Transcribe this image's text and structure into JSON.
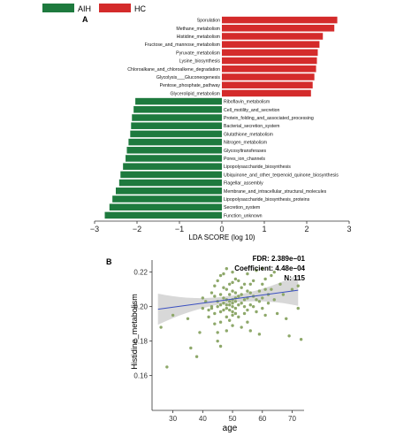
{
  "chart_data": [
    {
      "panel_label": "A",
      "type": "bar",
      "orientation": "horizontal",
      "legend": {
        "position": "top-left",
        "entries": [
          {
            "name": "AIH",
            "color": "#1e7a3e"
          },
          {
            "name": "HC",
            "color": "#d42b2b"
          }
        ]
      },
      "xlabel": "LDA SCORE (log 10)",
      "xlim": [
        -3,
        3
      ],
      "xticks": [
        -3,
        -2,
        -1,
        0,
        1,
        2,
        3
      ],
      "xtick_labels": [
        "−3",
        "−2",
        "−1",
        "0",
        "1",
        "2",
        "3"
      ],
      "categories": [
        "Sporulation",
        "Methane_metabolism",
        "Histidine_metabolism",
        "Fructose_and_mannose_metabolism",
        "Pyruvate_metabolism",
        "Lysine_biosynthesis",
        "Chloroalkane_and_chloroalkene_degradation",
        "Glycolysis___Gluconeogenesis",
        "Pentose_phosphate_pathway",
        "Glycerolipid_metabolism",
        "Riboflavin_metabolism",
        "Cell_motility_and_secretion",
        "Protein_folding_and_associated_processing",
        "Bacterial_secretion_system",
        "Glutathione_metabolism",
        "Nitrogen_metabolism",
        "Glycosyltransferases",
        "Pores_ion_channels",
        "Lipopolysaccharide_biosynthesis",
        "Ubiquinone_and_other_terpenoid_quinone_biosynthesis",
        "Flagellar_assembly",
        "Membrane_and_intracellular_structural_molecules",
        "Lipopolysaccharide_biosynthesis_proteins",
        "Secretion_system",
        "Function_unknown"
      ],
      "values": [
        2.72,
        2.65,
        2.38,
        2.3,
        2.26,
        2.24,
        2.22,
        2.18,
        2.14,
        2.1,
        -2.04,
        -2.08,
        -2.12,
        -2.14,
        -2.16,
        -2.2,
        -2.24,
        -2.27,
        -2.33,
        -2.39,
        -2.42,
        -2.5,
        -2.58,
        -2.65,
        -2.76
      ],
      "groups": [
        "HC",
        "HC",
        "HC",
        "HC",
        "HC",
        "HC",
        "HC",
        "HC",
        "HC",
        "HC",
        "AIH",
        "AIH",
        "AIH",
        "AIH",
        "AIH",
        "AIH",
        "AIH",
        "AIH",
        "AIH",
        "AIH",
        "AIH",
        "AIH",
        "AIH",
        "AIH",
        "AIH"
      ]
    },
    {
      "panel_label": "B",
      "type": "scatter",
      "xlabel": "age",
      "ylabel": "Histidine_metabolism",
      "xlim": [
        23,
        74
      ],
      "ylim": [
        0.147,
        0.227
      ],
      "xticks": [
        30,
        40,
        50,
        60,
        70
      ],
      "yticks": [
        0.16,
        0.18,
        0.2,
        0.22
      ],
      "ytick_labels": [
        "0.16",
        "0.18",
        "0.20",
        "0.22"
      ],
      "annotations": [
        "FDR: 2.389e−01",
        "Coefficient: 4.48e−04",
        "N: 115"
      ],
      "point_color": "#8ea86a",
      "fit": {
        "x": [
          25,
          72
        ],
        "y": [
          0.1985,
          0.2095
        ],
        "color": "#3a4fc0",
        "band_color": "#c8c8c8",
        "band_halfwidth_ends": 0.009,
        "band_halfwidth_mid": 0.002
      },
      "points": [
        [
          26,
          0.188
        ],
        [
          28,
          0.165
        ],
        [
          30,
          0.195
        ],
        [
          35,
          0.193
        ],
        [
          36,
          0.176
        ],
        [
          38,
          0.171
        ],
        [
          39,
          0.185
        ],
        [
          40,
          0.199
        ],
        [
          40,
          0.205
        ],
        [
          41,
          0.203
        ],
        [
          42,
          0.198
        ],
        [
          42,
          0.194
        ],
        [
          43,
          0.208
        ],
        [
          43,
          0.2
        ],
        [
          43,
          0.199
        ],
        [
          44,
          0.212
        ],
        [
          44,
          0.206
        ],
        [
          44,
          0.196
        ],
        [
          44,
          0.19
        ],
        [
          45,
          0.215
        ],
        [
          45,
          0.203
        ],
        [
          45,
          0.2
        ],
        [
          45,
          0.185
        ],
        [
          45,
          0.18
        ],
        [
          46,
          0.218
        ],
        [
          46,
          0.207
        ],
        [
          46,
          0.201
        ],
        [
          46,
          0.197
        ],
        [
          46,
          0.191
        ],
        [
          46,
          0.177
        ],
        [
          47,
          0.219
        ],
        [
          47,
          0.211
        ],
        [
          47,
          0.205
        ],
        [
          47,
          0.202
        ],
        [
          47,
          0.198
        ],
        [
          48,
          0.222
        ],
        [
          48,
          0.21
        ],
        [
          48,
          0.204
        ],
        [
          48,
          0.201
        ],
        [
          48,
          0.199
        ],
        [
          48,
          0.194
        ],
        [
          48,
          0.186
        ],
        [
          49,
          0.213
        ],
        [
          49,
          0.207
        ],
        [
          49,
          0.203
        ],
        [
          49,
          0.201
        ],
        [
          49,
          0.198
        ],
        [
          49,
          0.192
        ],
        [
          50,
          0.22
        ],
        [
          50,
          0.214
        ],
        [
          50,
          0.209
        ],
        [
          50,
          0.204
        ],
        [
          50,
          0.202
        ],
        [
          50,
          0.2
        ],
        [
          50,
          0.197
        ],
        [
          50,
          0.195
        ],
        [
          50,
          0.189
        ],
        [
          51,
          0.216
        ],
        [
          51,
          0.208
        ],
        [
          51,
          0.205
        ],
        [
          51,
          0.203
        ],
        [
          51,
          0.199
        ],
        [
          51,
          0.196
        ],
        [
          52,
          0.215
        ],
        [
          52,
          0.206
        ],
        [
          52,
          0.201
        ],
        [
          52,
          0.194
        ],
        [
          53,
          0.211
        ],
        [
          53,
          0.207
        ],
        [
          53,
          0.202
        ],
        [
          53,
          0.188
        ],
        [
          54,
          0.213
        ],
        [
          54,
          0.204
        ],
        [
          54,
          0.2
        ],
        [
          54,
          0.196
        ],
        [
          55,
          0.219
        ],
        [
          55,
          0.209
        ],
        [
          55,
          0.205
        ],
        [
          55,
          0.198
        ],
        [
          55,
          0.191
        ],
        [
          56,
          0.213
        ],
        [
          56,
          0.208
        ],
        [
          56,
          0.201
        ],
        [
          56,
          0.186
        ],
        [
          57,
          0.215
        ],
        [
          57,
          0.206
        ],
        [
          57,
          0.2
        ],
        [
          58,
          0.221
        ],
        [
          58,
          0.204
        ],
        [
          58,
          0.197
        ],
        [
          59,
          0.209
        ],
        [
          59,
          0.203
        ],
        [
          59,
          0.184
        ],
        [
          60,
          0.222
        ],
        [
          60,
          0.213
        ],
        [
          60,
          0.205
        ],
        [
          60,
          0.199
        ],
        [
          61,
          0.216
        ],
        [
          61,
          0.21
        ],
        [
          61,
          0.195
        ],
        [
          62,
          0.207
        ],
        [
          62,
          0.202
        ],
        [
          63,
          0.218
        ],
        [
          63,
          0.21
        ],
        [
          64,
          0.22
        ],
        [
          64,
          0.204
        ],
        [
          65,
          0.196
        ],
        [
          66,
          0.213
        ],
        [
          67,
          0.207
        ],
        [
          68,
          0.193
        ],
        [
          69,
          0.183
        ],
        [
          70,
          0.21
        ],
        [
          72,
          0.199
        ],
        [
          73,
          0.181
        ],
        [
          72,
          0.212
        ]
      ]
    }
  ]
}
